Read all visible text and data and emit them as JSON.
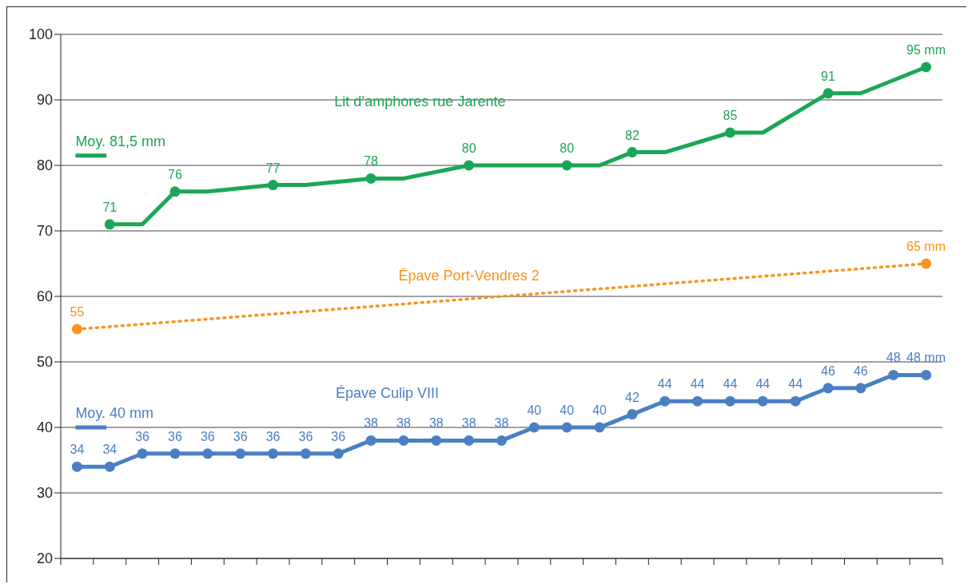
{
  "chart_data": {
    "type": "line",
    "categories": [
      null,
      null,
      null,
      null,
      null,
      null,
      null,
      null,
      null,
      null,
      null,
      null,
      null,
      null,
      null,
      null,
      null,
      null,
      null,
      null,
      null,
      null,
      null,
      null,
      null,
      null,
      null
    ],
    "series": [
      {
        "name": "Lit d’amphores rue Jarente",
        "color": "#1ba657",
        "values": [
          null,
          71,
          71,
          76,
          76,
          null,
          77,
          77,
          null,
          78,
          78,
          null,
          80,
          null,
          null,
          80,
          80,
          82,
          82,
          null,
          85,
          85,
          null,
          91,
          91,
          null,
          95
        ],
        "value_labels": [
          null,
          "71",
          null,
          "76",
          null,
          null,
          "77",
          null,
          null,
          "78",
          null,
          null,
          "80",
          null,
          null,
          "80",
          null,
          "82",
          null,
          null,
          "85",
          null,
          null,
          "91",
          null,
          null,
          "95 mm"
        ]
      },
      {
        "name": "Épave Port-Vendres 2",
        "color": "#f7931e",
        "line_style": "dotted",
        "values": [
          55,
          null,
          null,
          null,
          null,
          null,
          null,
          null,
          null,
          null,
          null,
          null,
          null,
          null,
          null,
          null,
          null,
          null,
          null,
          null,
          null,
          null,
          null,
          null,
          null,
          null,
          65
        ],
        "value_labels": [
          "55",
          null,
          null,
          null,
          null,
          null,
          null,
          null,
          null,
          null,
          null,
          null,
          null,
          null,
          null,
          null,
          null,
          null,
          null,
          null,
          null,
          null,
          null,
          null,
          null,
          null,
          "65 mm"
        ]
      },
      {
        "name": "Épave Culip VIII",
        "color": "#4a7fc4",
        "values": [
          34,
          34,
          36,
          36,
          36,
          36,
          36,
          36,
          36,
          38,
          38,
          38,
          38,
          38,
          40,
          40,
          40,
          42,
          44,
          44,
          44,
          44,
          44,
          46,
          46,
          48,
          48
        ],
        "value_labels": [
          "34",
          "34",
          "36",
          "36",
          "36",
          "36",
          "36",
          "36",
          "36",
          "38",
          "38",
          "38",
          "38",
          "38",
          "40",
          "40",
          "40",
          "42",
          "44",
          "44",
          "44",
          "44",
          "44",
          "46",
          "46",
          "48",
          "48 mm"
        ]
      }
    ],
    "ref_lines": [
      {
        "axis": "y",
        "value": 81.5,
        "label": "Moy. 81,5 mm",
        "color": "#1ba657"
      },
      {
        "axis": "y",
        "value": 40,
        "label": "Moy. 40 mm",
        "color": "#4a7fc4"
      }
    ],
    "ylim": [
      20,
      100
    ],
    "yticks": [
      20,
      30,
      40,
      50,
      60,
      70,
      80,
      90,
      100
    ],
    "grid": "y",
    "marker": "circle",
    "line_style": "solid",
    "tick_labels": "y"
  }
}
